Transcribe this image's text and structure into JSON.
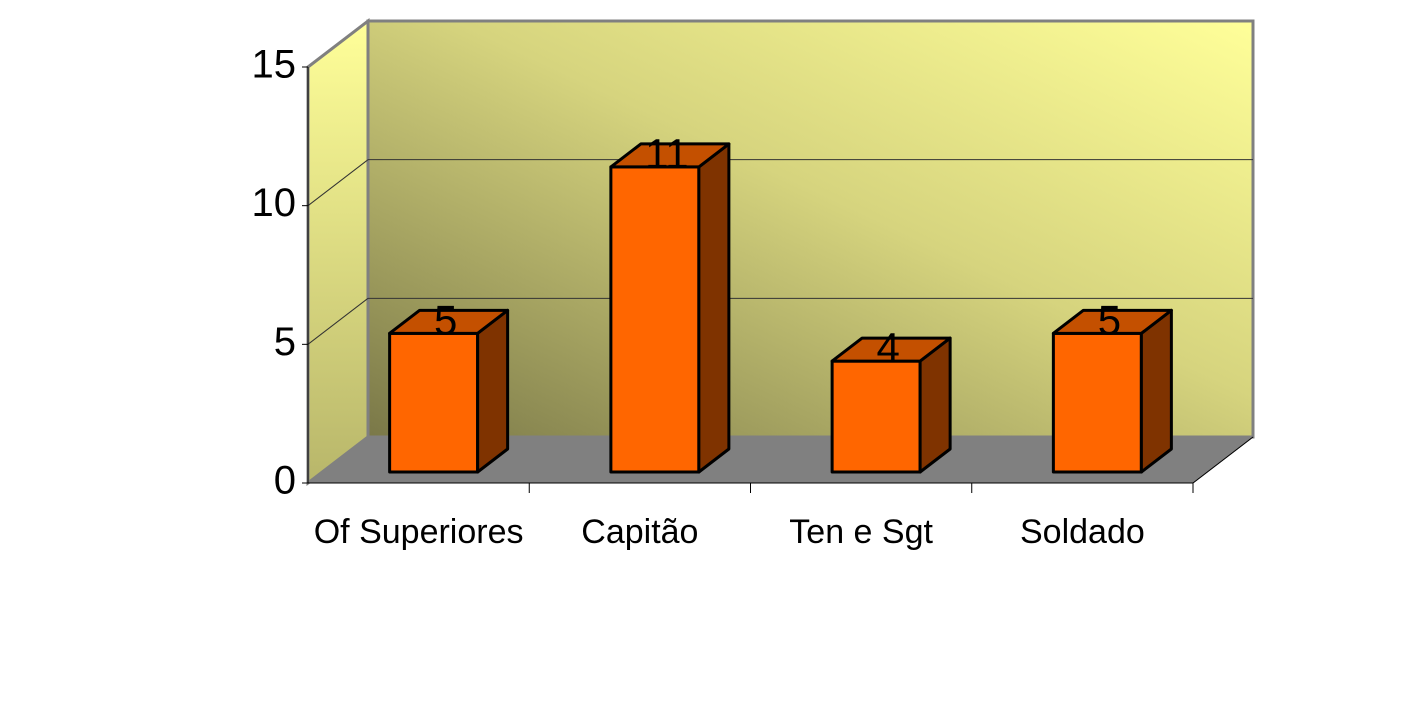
{
  "chart_data": {
    "type": "bar3d",
    "categories": [
      "Of Superiores",
      "Capitão",
      "Ten e Sgt",
      "Soldado"
    ],
    "values": [
      5,
      11,
      4,
      5
    ],
    "color": "#ff6600",
    "ylim": [
      0,
      15
    ],
    "yticks": [
      0,
      5,
      10,
      15
    ],
    "grid": true
  }
}
